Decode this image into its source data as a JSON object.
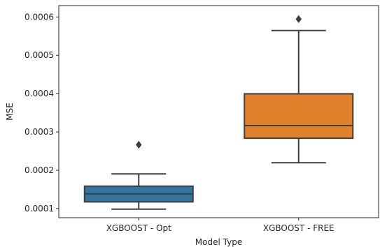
{
  "chart_data": {
    "type": "boxplot",
    "title": "",
    "xlabel": "Model Type",
    "ylabel": "MSE",
    "ylim": [
      7.62e-05,
      0.0006297
    ],
    "yticks": [
      "0.0001",
      "0.0002",
      "0.0003",
      "0.0004",
      "0.0005",
      "0.0006"
    ],
    "ytick_values": [
      0.0001,
      0.0002,
      0.0003,
      0.0004,
      0.0005,
      0.0006
    ],
    "grid": false,
    "categories": [
      "XGBOOST - Opt",
      "XGBOOST - FREE"
    ],
    "boxes": [
      {
        "category": "XGBOOST - Opt",
        "whisker_low": 9.85e-05,
        "q1": 0.0001175,
        "median": 0.0001385,
        "q3": 0.0001585,
        "whisker_high": 0.0001905,
        "outliers": [
          0.0002665
        ],
        "color": "#3274a1"
      },
      {
        "category": "XGBOOST - FREE",
        "whisker_low": 0.0002195,
        "q1": 0.0002835,
        "median": 0.0003165,
        "q3": 0.0003995,
        "whisker_high": 0.0005645,
        "outliers": [
          0.0005945
        ],
        "color": "#e1812c"
      }
    ]
  }
}
